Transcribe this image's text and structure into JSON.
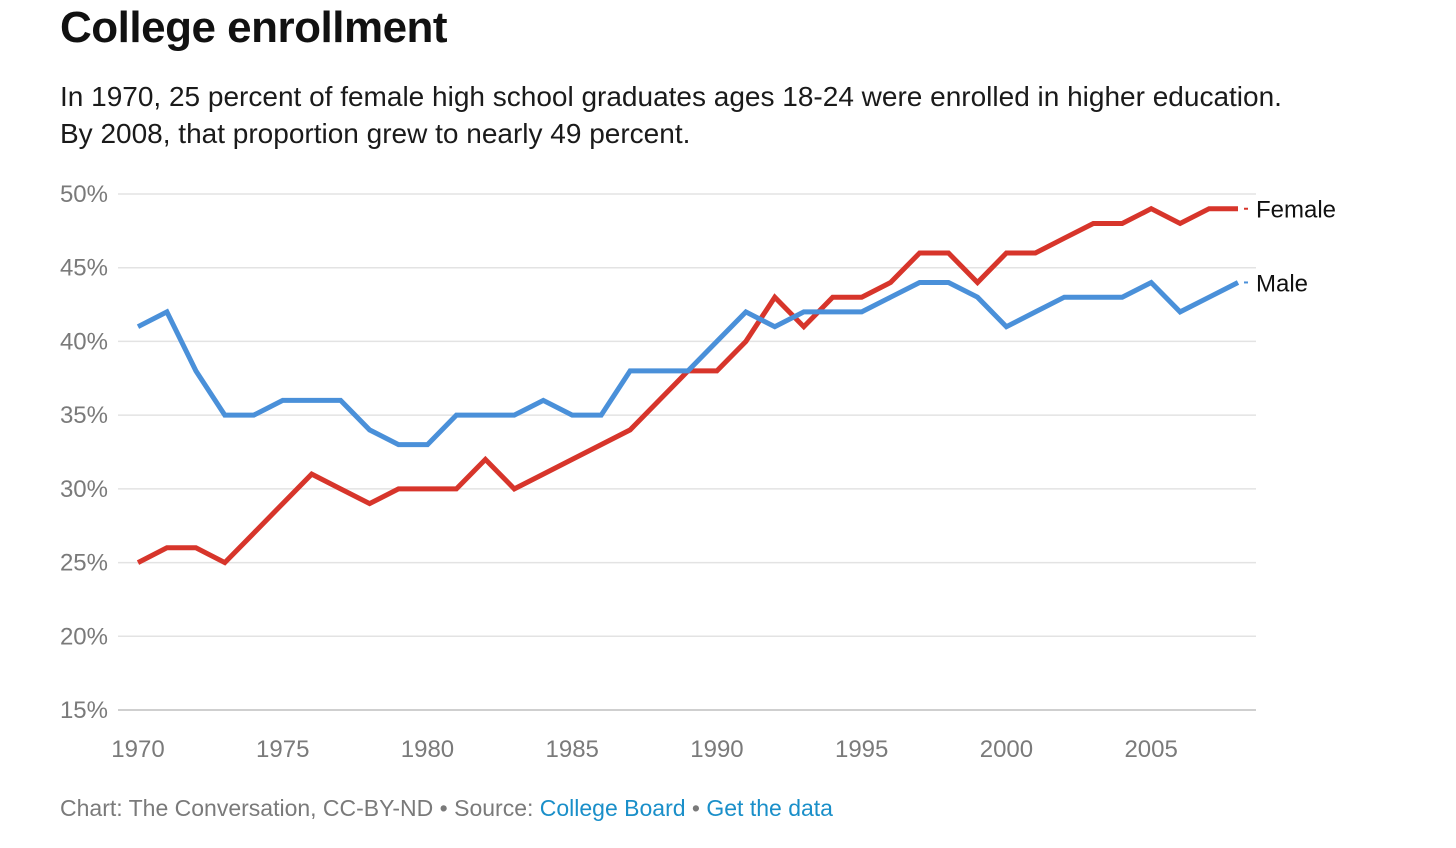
{
  "header": {
    "title": "College enrollment",
    "subtitle": "In 1970, 25 percent of female high school graduates ages 18-24 were enrolled in higher education. By 2008, that proportion grew to nearly 49 percent."
  },
  "footer": {
    "credit": "Chart: The Conversation, CC-BY-ND",
    "separator": "•",
    "source_prefix": "Source:",
    "source_link": "College Board",
    "data_link": "Get the data",
    "link_color": "#1a8fc9"
  },
  "chart_data": {
    "type": "line",
    "title": "College enrollment",
    "xlabel": "",
    "ylabel": "",
    "xlim": [
      1970,
      2008
    ],
    "ylim": [
      15,
      50
    ],
    "grid": true,
    "legend": "direct labels at line ends, right",
    "x_ticks": [
      1970,
      1975,
      1980,
      1985,
      1990,
      1995,
      2000,
      2005
    ],
    "x_tick_labels": [
      "1970",
      "1975",
      "1980",
      "1985",
      "1990",
      "1995",
      "2000",
      "2005"
    ],
    "y_ticks": [
      15,
      20,
      25,
      30,
      35,
      40,
      45,
      50
    ],
    "y_tick_labels": [
      "15%",
      "20%",
      "25%",
      "30%",
      "35%",
      "40%",
      "45%",
      "50%"
    ],
    "x": [
      1970,
      1971,
      1972,
      1973,
      1974,
      1975,
      1976,
      1977,
      1978,
      1979,
      1980,
      1981,
      1982,
      1983,
      1984,
      1985,
      1986,
      1987,
      1988,
      1989,
      1990,
      1991,
      1992,
      1993,
      1994,
      1995,
      1996,
      1997,
      1998,
      1999,
      2000,
      2001,
      2002,
      2003,
      2004,
      2005,
      2006,
      2007,
      2008
    ],
    "series": [
      {
        "name": "Female",
        "color": "#d7352b",
        "values": [
          25,
          26,
          26,
          25,
          27,
          29,
          31,
          30,
          29,
          30,
          30,
          30,
          32,
          30,
          31,
          32,
          33,
          34,
          36,
          38,
          38,
          40,
          43,
          41,
          43,
          43,
          44,
          46,
          46,
          44,
          46,
          46,
          47,
          48,
          48,
          49,
          48,
          49,
          49
        ]
      },
      {
        "name": "Male",
        "color": "#4a90d9",
        "values": [
          41,
          42,
          38,
          35,
          35,
          36,
          36,
          36,
          34,
          33,
          33,
          35,
          35,
          35,
          36,
          35,
          35,
          38,
          38,
          38,
          40,
          42,
          41,
          42,
          42,
          42,
          43,
          44,
          44,
          43,
          41,
          42,
          43,
          43,
          43,
          44,
          42,
          43,
          44
        ]
      }
    ]
  }
}
